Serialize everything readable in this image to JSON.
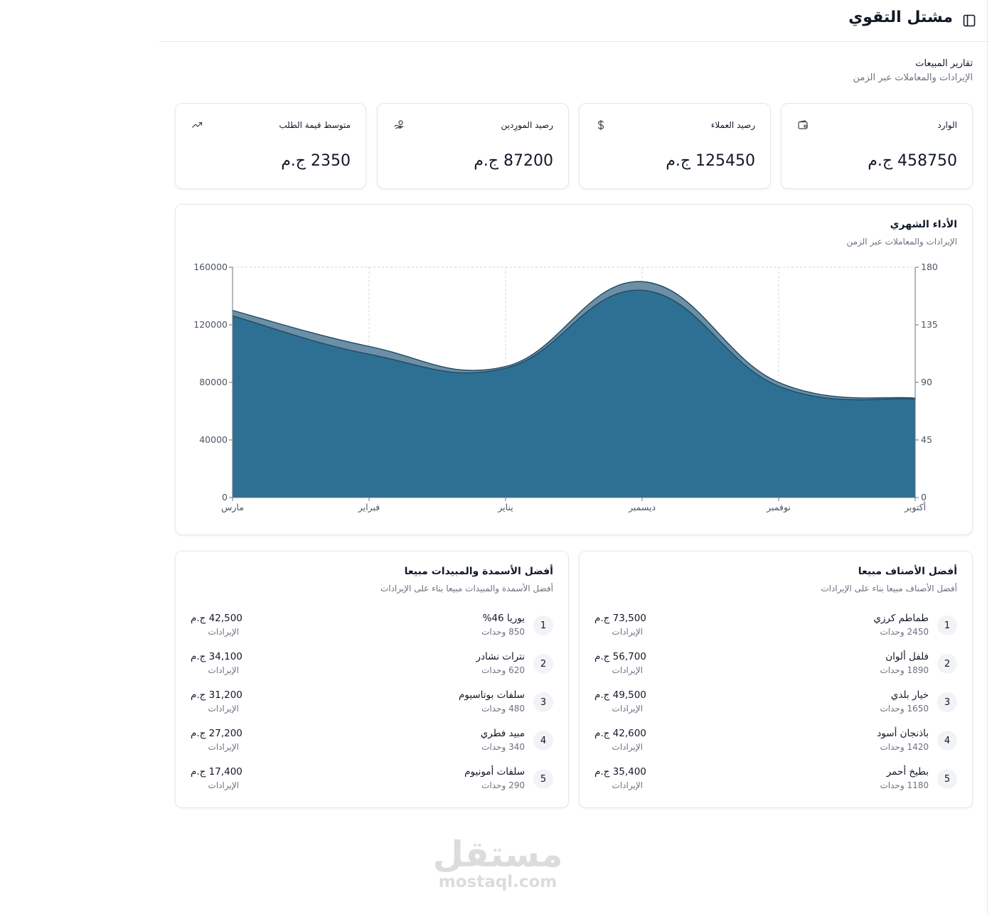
{
  "app": {
    "title": "مشتل التقوي"
  },
  "page": {
    "heading": "تقارير المبيعات",
    "subheading": "الإيرادات والمعاملات عبر الزمن"
  },
  "stats": [
    {
      "label": "الوارد",
      "value": "458750 ج.م",
      "icon": "wallet-icon"
    },
    {
      "label": "رصيد العملاء",
      "value": "125450 ج.م",
      "icon": "dollar-icon"
    },
    {
      "label": "رصيد المورِدين",
      "value": "87200 ج.م",
      "icon": "hand-coins-icon"
    },
    {
      "label": "متوسط قيمة الطلب",
      "value": "2350 ج.م",
      "icon": "trending-up-icon"
    }
  ],
  "chart": {
    "title": "الأداء الشهري",
    "subtitle": "الإيرادات والمعاملات عبر الزمن"
  },
  "chart_data": {
    "type": "area",
    "categories": [
      "أكتوبر",
      "نوفمبر",
      "ديسمبر",
      "يناير",
      "فبراير",
      "مارس"
    ],
    "series": [
      {
        "axis": "left",
        "values": [
          69000,
          80000,
          150000,
          91000,
          105000,
          130000
        ],
        "color": "#6c8fa5"
      },
      {
        "axis": "right",
        "values": [
          77,
          87,
          162,
          101,
          112,
          142
        ],
        "color": "#2e7093"
      }
    ],
    "y_left": {
      "ticks": [
        0,
        40000,
        80000,
        120000,
        160000
      ],
      "ylim": [
        0,
        160000
      ]
    },
    "y_right": {
      "ticks": [
        0,
        45,
        90,
        135,
        180
      ],
      "ylim": [
        0,
        180
      ]
    },
    "x_direction": "right-to-left",
    "grid": true
  },
  "colors": {
    "area_top": "#6c8fa5",
    "area_main": "#2e7093",
    "area_stroke": "#1e4a66"
  },
  "top_products": {
    "title": "أفضل الأصناف مبيعا",
    "subtitle": "أفضل الأصناف مبيعا بناء على الإيرادات",
    "revenue_label": "الإيرادات",
    "items": [
      {
        "rank": "1",
        "name": "طماطم كرزي",
        "units": "2450 وحدات",
        "amount": "73,500 ج.م"
      },
      {
        "rank": "2",
        "name": "فلفل ألوان",
        "units": "1890 وحدات",
        "amount": "56,700 ج.م"
      },
      {
        "rank": "3",
        "name": "خيار بلدي",
        "units": "1650 وحدات",
        "amount": "49,500 ج.م"
      },
      {
        "rank": "4",
        "name": "باذنجان أسود",
        "units": "1420 وحدات",
        "amount": "42,600 ج.م"
      },
      {
        "rank": "5",
        "name": "بطيخ أحمر",
        "units": "1180 وحدات",
        "amount": "35,400 ج.م"
      }
    ]
  },
  "top_fertilizers": {
    "title": "أفضل الأسمدة والمبيدات مبيعا",
    "subtitle": "أفضل الأسمدة والمبيدات مبيعا بناء على الإيرادات",
    "revenue_label": "الإيرادات",
    "items": [
      {
        "rank": "1",
        "name": "يوريا 46%",
        "units": "850 وحدات",
        "amount": "42,500 ج.م"
      },
      {
        "rank": "2",
        "name": "نترات نشادر",
        "units": "620 وحدات",
        "amount": "34,100 ج.م"
      },
      {
        "rank": "3",
        "name": "سلفات بوتاسيوم",
        "units": "480 وحدات",
        "amount": "31,200 ج.م"
      },
      {
        "rank": "4",
        "name": "مبيد فطري",
        "units": "340 وحدات",
        "amount": "27,200 ج.م"
      },
      {
        "rank": "5",
        "name": "سلفات أمونيوم",
        "units": "290 وحدات",
        "amount": "17,400 ج.م"
      }
    ]
  },
  "watermark": {
    "text": "مستقل",
    "domain": "mostaql.com"
  }
}
